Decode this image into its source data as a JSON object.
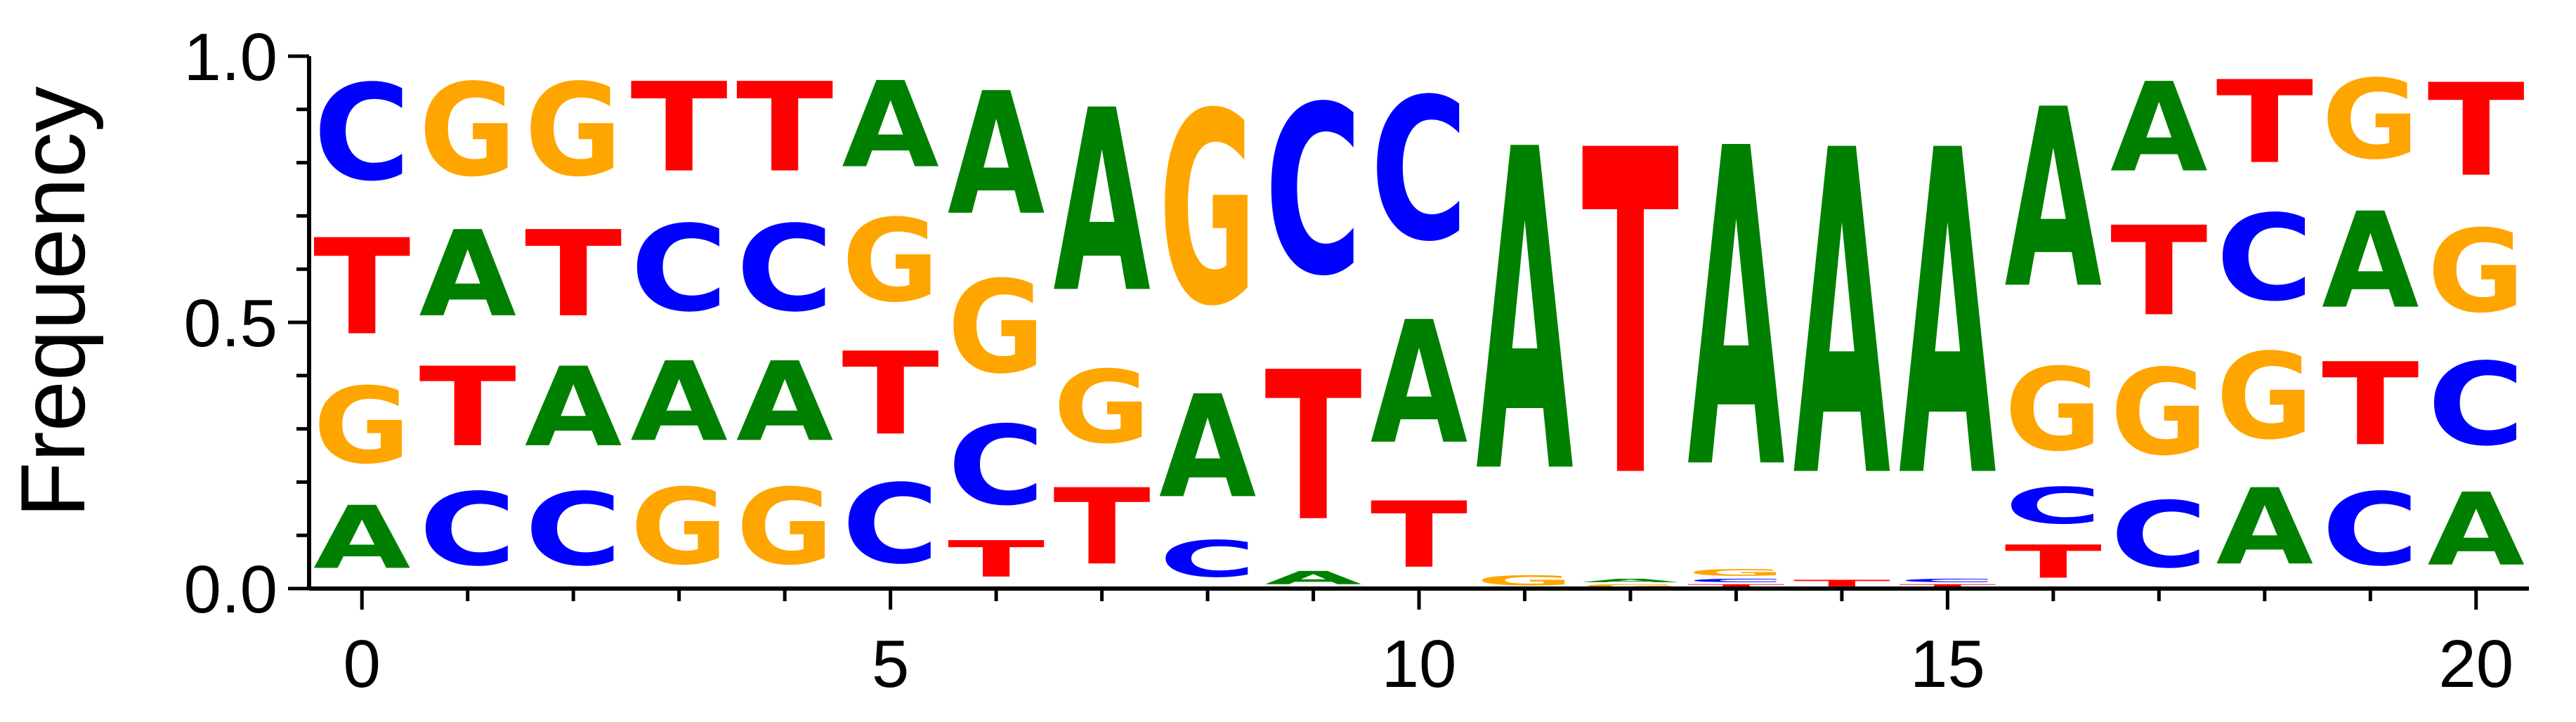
{
  "chart_data": {
    "type": "sequence-logo",
    "ylabel": "Frequency",
    "ylim": [
      0,
      1
    ],
    "xlim": [
      -0.5,
      20.5
    ],
    "x_ticks": [
      "0",
      "5",
      "10",
      "15",
      "20"
    ],
    "y_ticks": [
      "0.0",
      "0.5",
      "1.0"
    ],
    "colors": {
      "A": "#008000",
      "C": "#0000ff",
      "G": "#ffa500",
      "T": "#ff0000"
    },
    "positions": [
      {
        "pos": 0,
        "stack": [
          [
            "A",
            0.19
          ],
          [
            "G",
            0.23
          ],
          [
            "T",
            0.29
          ],
          [
            "C",
            0.29
          ]
        ]
      },
      {
        "pos": 1,
        "stack": [
          [
            "C",
            0.22
          ],
          [
            "T",
            0.24
          ],
          [
            "A",
            0.26
          ],
          [
            "G",
            0.28
          ]
        ]
      },
      {
        "pos": 2,
        "stack": [
          [
            "C",
            0.22
          ],
          [
            "A",
            0.24
          ],
          [
            "T",
            0.26
          ],
          [
            "G",
            0.28
          ]
        ]
      },
      {
        "pos": 3,
        "stack": [
          [
            "G",
            0.23
          ],
          [
            "A",
            0.24
          ],
          [
            "C",
            0.26
          ],
          [
            "T",
            0.27
          ]
        ]
      },
      {
        "pos": 4,
        "stack": [
          [
            "G",
            0.23
          ],
          [
            "A",
            0.24
          ],
          [
            "C",
            0.26
          ],
          [
            "T",
            0.27
          ]
        ]
      },
      {
        "pos": 5,
        "stack": [
          [
            "C",
            0.24
          ],
          [
            "T",
            0.25
          ],
          [
            "G",
            0.25
          ],
          [
            "A",
            0.26
          ]
        ]
      },
      {
        "pos": 6,
        "stack": [
          [
            "T",
            0.11
          ],
          [
            "C",
            0.24
          ],
          [
            "G",
            0.28
          ],
          [
            "A",
            0.37
          ]
        ]
      },
      {
        "pos": 7,
        "stack": [
          [
            "T",
            0.23
          ],
          [
            "G",
            0.22
          ],
          [
            "A",
            0.55
          ]
        ]
      },
      {
        "pos": 8,
        "stack": [
          [
            "C",
            0.11
          ],
          [
            "A",
            0.31
          ],
          [
            "G",
            0.58
          ]
        ]
      },
      {
        "pos": 9,
        "stack": [
          [
            "A",
            0.04
          ],
          [
            "T",
            0.45
          ],
          [
            "C",
            0.51
          ]
        ]
      },
      {
        "pos": 10,
        "stack": [
          [
            "T",
            0.2
          ],
          [
            "A",
            0.37
          ],
          [
            "C",
            0.43
          ]
        ]
      },
      {
        "pos": 11,
        "stack": [
          [
            "G",
            0.03
          ],
          [
            "A",
            0.97
          ]
        ]
      },
      {
        "pos": 12,
        "stack": [
          [
            "G",
            0.01
          ],
          [
            "A",
            0.01
          ],
          [
            "T",
            0.98
          ]
        ]
      },
      {
        "pos": 13,
        "stack": [
          [
            "T",
            0.01
          ],
          [
            "C",
            0.01
          ],
          [
            "G",
            0.02
          ],
          [
            "A",
            0.96
          ]
        ]
      },
      {
        "pos": 14,
        "stack": [
          [
            "T",
            0.02
          ],
          [
            "A",
            0.98
          ]
        ]
      },
      {
        "pos": 15,
        "stack": [
          [
            "T",
            0.01
          ],
          [
            "C",
            0.01
          ],
          [
            "A",
            0.98
          ]
        ]
      },
      {
        "pos": 16,
        "stack": [
          [
            "T",
            0.1
          ],
          [
            "C",
            0.11
          ],
          [
            "G",
            0.25
          ],
          [
            "A",
            0.54
          ]
        ]
      },
      {
        "pos": 17,
        "stack": [
          [
            "C",
            0.2
          ],
          [
            "G",
            0.26
          ],
          [
            "T",
            0.27
          ],
          [
            "A",
            0.27
          ]
        ]
      },
      {
        "pos": 18,
        "stack": [
          [
            "A",
            0.23
          ],
          [
            "G",
            0.26
          ],
          [
            "C",
            0.26
          ],
          [
            "T",
            0.25
          ]
        ]
      },
      {
        "pos": 19,
        "stack": [
          [
            "C",
            0.22
          ],
          [
            "T",
            0.25
          ],
          [
            "A",
            0.29
          ],
          [
            "G",
            0.24
          ]
        ]
      },
      {
        "pos": 20,
        "stack": [
          [
            "A",
            0.22
          ],
          [
            "C",
            0.25
          ],
          [
            "G",
            0.25
          ],
          [
            "T",
            0.28
          ]
        ]
      }
    ]
  }
}
